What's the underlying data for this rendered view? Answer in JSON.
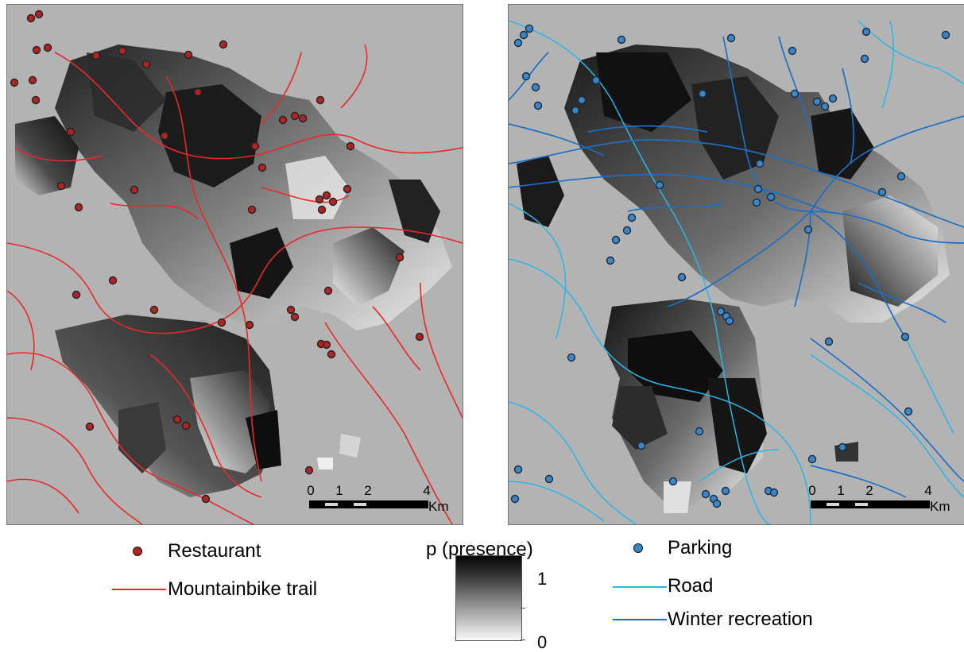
{
  "colors": {
    "background_gray": "#b3b3b3",
    "trail_red": "#e8282a",
    "restaurant_fill": "#b22323",
    "road_light_blue": "#29b6e8",
    "winter_dark_blue": "#1c6fc4",
    "parking_fill": "#3a86c9"
  },
  "scalebar": {
    "ticks": [
      "0",
      "1",
      "2",
      "4"
    ],
    "unit": "Km"
  },
  "legend": {
    "restaurant": {
      "label": "Restaurant",
      "icon": "dark-red-dot"
    },
    "mountainbike_trail": {
      "label": "Mountainbike trail",
      "icon": "red-line"
    },
    "presence": {
      "title": "p (presence)",
      "max": "1",
      "min": "0"
    },
    "parking": {
      "label": "Parking",
      "icon": "blue-dot"
    },
    "road": {
      "label": "Road",
      "icon": "light-blue-line"
    },
    "winter_recreation": {
      "label": "Winter recreation",
      "icon": "dark-blue-line"
    }
  }
}
